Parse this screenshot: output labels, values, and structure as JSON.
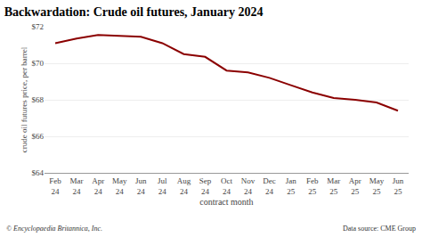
{
  "chart_data": {
    "type": "line",
    "title": "Backwardation: Crude oil futures, January 2024",
    "xlabel": "contract month",
    "ylabel": "crude oil futures price, per barrel",
    "categories": [
      "Feb\n24",
      "Mar\n24",
      "Apr\n24",
      "May\n24",
      "Jun\n24",
      "Jul\n24",
      "Aug\n24",
      "Sep\n24",
      "Oct\n24",
      "Nov\n24",
      "Dec\n24",
      "Jan\n25",
      "Feb\n25",
      "Mar\n25",
      "Apr\n25",
      "May\n25",
      "Jun\n25"
    ],
    "values": [
      71.1,
      71.35,
      71.55,
      71.5,
      71.45,
      71.1,
      70.5,
      70.35,
      69.6,
      69.5,
      69.2,
      68.8,
      68.4,
      68.1,
      68.0,
      67.85,
      67.4
    ],
    "color": "#8b0000",
    "ylim": [
      64,
      72
    ],
    "yticks": [
      {
        "value": 64,
        "label": "$64"
      },
      {
        "value": 66,
        "label": "$66"
      },
      {
        "value": 68,
        "label": "$68"
      },
      {
        "value": 70,
        "label": "$70"
      },
      {
        "value": 72,
        "label": "$72"
      }
    ],
    "grid": true,
    "annotations": [
      {
        "text": "© Encyclopaedia Britannica, Inc."
      },
      {
        "text": "Data source: CME Group"
      }
    ]
  }
}
